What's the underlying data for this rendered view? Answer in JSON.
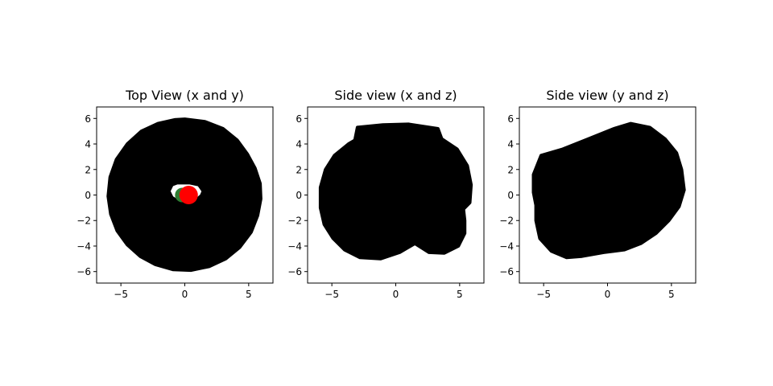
{
  "chart_data": [
    {
      "type": "scatter",
      "title": "Top View (x and y)",
      "xlabel": "",
      "ylabel": "",
      "xlim": [
        -6.9,
        6.9
      ],
      "ylim": [
        -6.9,
        6.9
      ],
      "xticks": [
        -5,
        0,
        5
      ],
      "yticks": [
        -6,
        -4,
        -2,
        0,
        2,
        4,
        6
      ],
      "grid": false,
      "body_color": "#000000",
      "body_outline": [
        [
          0,
          5.95
        ],
        [
          1.6,
          5.75
        ],
        [
          3.0,
          5.2
        ],
        [
          4.1,
          4.3
        ],
        [
          4.9,
          3.2
        ],
        [
          5.5,
          2.1
        ],
        [
          5.9,
          0.9
        ],
        [
          5.95,
          -0.3
        ],
        [
          5.7,
          -1.6
        ],
        [
          5.2,
          -2.9
        ],
        [
          4.3,
          -4.1
        ],
        [
          3.2,
          -5.0
        ],
        [
          1.9,
          -5.6
        ],
        [
          0.5,
          -5.9
        ],
        [
          -0.9,
          -5.85
        ],
        [
          -2.3,
          -5.45
        ],
        [
          -3.5,
          -4.8
        ],
        [
          -4.5,
          -3.9
        ],
        [
          -5.3,
          -2.8
        ],
        [
          -5.8,
          -1.5
        ],
        [
          -6.0,
          -0.1
        ],
        [
          -5.85,
          1.4
        ],
        [
          -5.35,
          2.8
        ],
        [
          -4.5,
          4.0
        ],
        [
          -3.4,
          5.0
        ],
        [
          -2.1,
          5.6
        ],
        [
          -0.8,
          5.9
        ]
      ],
      "hole_outline": [
        [
          -0.6,
          0.95
        ],
        [
          0.4,
          0.95
        ],
        [
          1.1,
          0.8
        ],
        [
          1.45,
          0.3
        ],
        [
          1.3,
          -0.05
        ],
        [
          0.9,
          -0.4
        ],
        [
          0.2,
          -0.6
        ],
        [
          -0.5,
          -0.5
        ],
        [
          -1.0,
          -0.2
        ],
        [
          -1.25,
          0.3
        ],
        [
          -1.0,
          0.8
        ]
      ],
      "green_point": {
        "x": -0.2,
        "y": 0.0,
        "color": "#2e7d32"
      },
      "red_point": {
        "x": 0.3,
        "y": 0.0,
        "color": "#ff0000"
      }
    },
    {
      "type": "scatter",
      "title": "Side view (x and z)",
      "xlabel": "",
      "ylabel": "",
      "xlim": [
        -6.9,
        6.9
      ],
      "ylim": [
        -6.9,
        6.9
      ],
      "xticks": [
        -5,
        0,
        5
      ],
      "yticks": [
        -6,
        -4,
        -2,
        0,
        2,
        4,
        6
      ],
      "grid": false,
      "body_color": "#000000",
      "body_outline": [
        [
          -3.0,
          5.3
        ],
        [
          -1.0,
          5.5
        ],
        [
          1.0,
          5.55
        ],
        [
          3.3,
          5.2
        ],
        [
          3.6,
          4.4
        ],
        [
          4.8,
          3.6
        ],
        [
          5.6,
          2.3
        ],
        [
          5.9,
          0.8
        ],
        [
          5.8,
          -0.6
        ],
        [
          5.3,
          -1.1
        ],
        [
          5.4,
          -2.0
        ],
        [
          5.4,
          -3.0
        ],
        [
          4.9,
          -4.0
        ],
        [
          3.8,
          -4.55
        ],
        [
          2.6,
          -4.5
        ],
        [
          1.5,
          -3.8
        ],
        [
          0.3,
          -4.5
        ],
        [
          -1.2,
          -5.0
        ],
        [
          -2.8,
          -4.9
        ],
        [
          -4.0,
          -4.3
        ],
        [
          -4.9,
          -3.4
        ],
        [
          -5.6,
          -2.3
        ],
        [
          -5.9,
          -1.0
        ],
        [
          -5.9,
          0.6
        ],
        [
          -5.5,
          2.0
        ],
        [
          -4.8,
          3.1
        ],
        [
          -3.7,
          4.0
        ],
        [
          -3.2,
          4.3
        ]
      ]
    },
    {
      "type": "scatter",
      "title": "Side view (y and z)",
      "xlabel": "",
      "ylabel": "",
      "xlim": [
        -6.9,
        6.9
      ],
      "ylim": [
        -6.9,
        6.9
      ],
      "xticks": [
        -5,
        0,
        5
      ],
      "yticks": [
        -6,
        -4,
        -2,
        0,
        2,
        4,
        6
      ],
      "grid": false,
      "body_color": "#000000",
      "body_outline": [
        [
          -5.2,
          3.1
        ],
        [
          -3.5,
          3.6
        ],
        [
          -1.5,
          4.4
        ],
        [
          0.5,
          5.2
        ],
        [
          1.8,
          5.6
        ],
        [
          3.3,
          5.3
        ],
        [
          4.5,
          4.4
        ],
        [
          5.4,
          3.3
        ],
        [
          5.8,
          2.0
        ],
        [
          6.0,
          0.4
        ],
        [
          5.6,
          -0.9
        ],
        [
          4.8,
          -2.0
        ],
        [
          3.8,
          -3.0
        ],
        [
          2.6,
          -3.8
        ],
        [
          1.3,
          -4.3
        ],
        [
          -0.3,
          -4.5
        ],
        [
          -2.0,
          -4.8
        ],
        [
          -3.2,
          -4.9
        ],
        [
          -4.4,
          -4.4
        ],
        [
          -5.3,
          -3.4
        ],
        [
          -5.6,
          -2.0
        ],
        [
          -5.6,
          -0.8
        ],
        [
          -5.8,
          0.2
        ],
        [
          -5.8,
          1.6
        ]
      ]
    }
  ]
}
